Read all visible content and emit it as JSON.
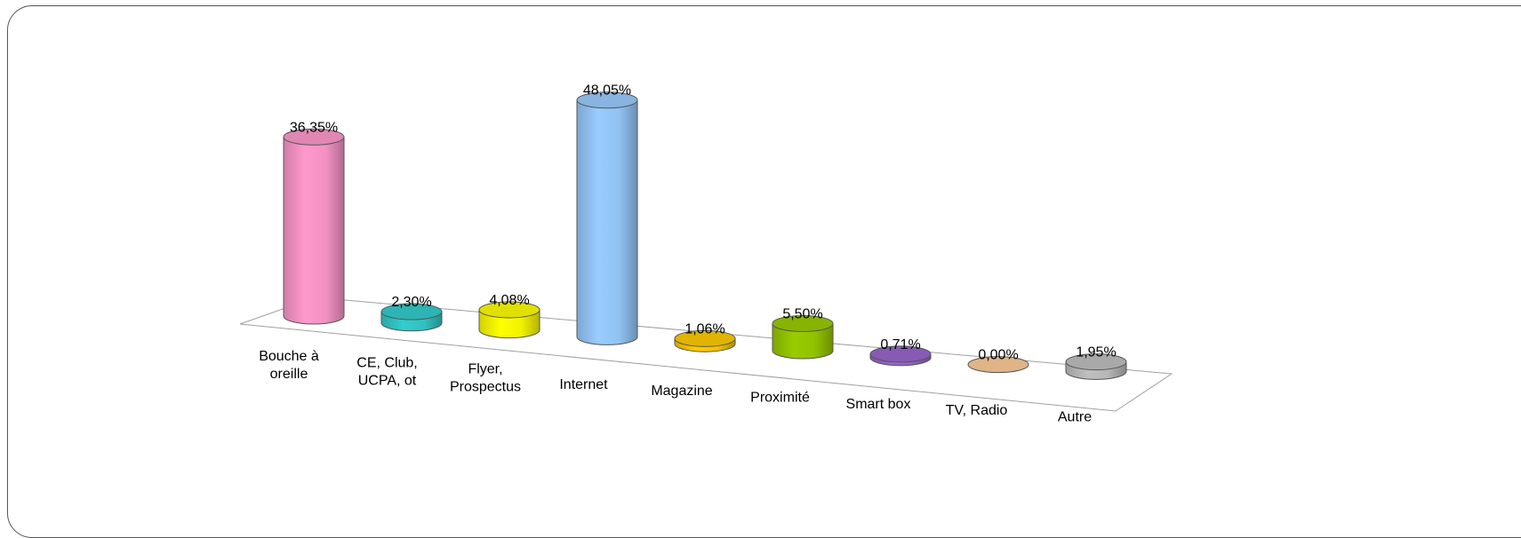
{
  "chart_data": {
    "type": "bar",
    "style": "3d-cylinder",
    "categories": [
      [
        "Bouche à",
        "oreille"
      ],
      [
        "CE, Club,",
        "UCPA, ot"
      ],
      [
        "Flyer,",
        "Prospectus"
      ],
      [
        "Internet"
      ],
      [
        "Magazine"
      ],
      [
        "Proximité"
      ],
      [
        "Smart box"
      ],
      [
        "TV, Radio"
      ],
      [
        "Autre"
      ]
    ],
    "values": [
      36.35,
      2.3,
      4.08,
      48.05,
      1.06,
      5.5,
      0.71,
      0.0,
      1.95
    ],
    "value_labels": [
      "36,35%",
      "2,30%",
      "4,08%",
      "48,05%",
      "1,06%",
      "5,50%",
      "0,71%",
      "0,00%",
      "1,95%"
    ],
    "colors": [
      "#ff99cc",
      "#33cccc",
      "#ffff00",
      "#99ccff",
      "#ffcc00",
      "#99cc00",
      "#9966cc",
      "#ffcc99",
      "#c0c0c0"
    ],
    "title": "",
    "xlabel": "",
    "ylabel": "",
    "ylim": [
      0,
      50
    ],
    "grid": false,
    "legend": "none"
  }
}
